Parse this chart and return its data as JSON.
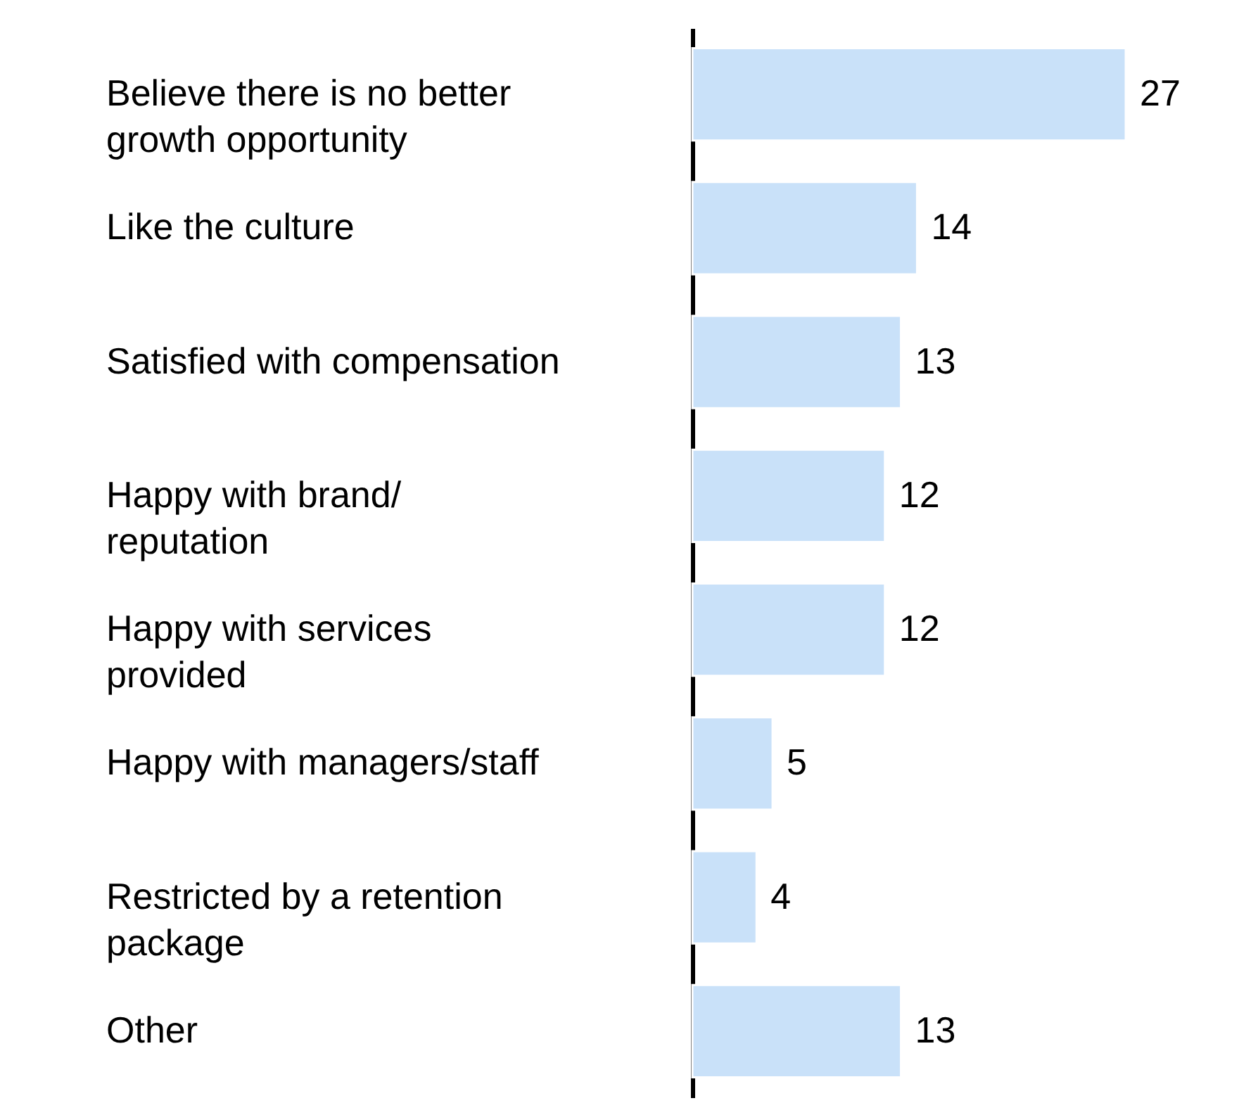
{
  "chart_data": {
    "type": "bar",
    "orientation": "horizontal",
    "categories": [
      "Believe there is no better growth opportunity",
      "Like the culture",
      "Satisfied with compensation",
      "Happy with brand/ reputation",
      "Happy with services provided",
      "Happy with managers/staff",
      "Restricted by a retention package",
      "Other"
    ],
    "values": [
      27,
      14,
      13,
      12,
      12,
      5,
      4,
      13
    ],
    "color": "#c9e1f9",
    "data_labels": true
  }
}
